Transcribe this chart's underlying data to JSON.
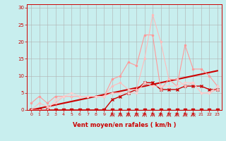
{
  "bg_color": "#c8eeee",
  "grid_color": "#b0b0b0",
  "xlabel": "Vent moyen/en rafales ( km/h )",
  "xlabel_color": "#cc0000",
  "tick_color": "#cc0000",
  "xlim": [
    -0.5,
    23.5
  ],
  "ylim": [
    0,
    31
  ],
  "yticks": [
    0,
    5,
    10,
    15,
    20,
    25,
    30
  ],
  "xticks": [
    0,
    1,
    2,
    3,
    4,
    5,
    6,
    7,
    8,
    9,
    10,
    11,
    12,
    13,
    14,
    15,
    16,
    17,
    18,
    19,
    20,
    21,
    22,
    23
  ],
  "series": [
    {
      "x": [
        0,
        1,
        2,
        3,
        4,
        5,
        6,
        7,
        8,
        9,
        10,
        11,
        12,
        13,
        14,
        15,
        16,
        17,
        18,
        19,
        20,
        21,
        22,
        23
      ],
      "y": [
        0,
        0,
        0,
        0,
        0,
        0,
        0,
        0,
        0,
        0,
        0,
        0,
        0,
        0,
        0,
        0,
        0,
        0,
        0,
        0,
        0,
        0,
        0,
        0
      ],
      "color": "#cc0000",
      "lw": 1.0,
      "marker": "s",
      "ms": 2.5,
      "alpha": 1.0,
      "linestyle": "-"
    },
    {
      "x": [
        0,
        1,
        2,
        3,
        4,
        5,
        6,
        7,
        8,
        9,
        10,
        11,
        12,
        13,
        14,
        15,
        16,
        17,
        18,
        19,
        20,
        21,
        22,
        23
      ],
      "y": [
        0,
        0.5,
        1.0,
        1.5,
        2.0,
        2.5,
        3.0,
        3.5,
        4.0,
        4.5,
        5.0,
        5.5,
        6.0,
        6.5,
        7.0,
        7.5,
        8.0,
        8.5,
        9.0,
        9.5,
        10.0,
        10.5,
        11.0,
        11.5
      ],
      "color": "#cc0000",
      "lw": 1.5,
      "marker": null,
      "ms": 0,
      "alpha": 1.0,
      "linestyle": "-"
    },
    {
      "x": [
        0,
        1,
        2,
        3,
        4,
        5,
        6,
        7,
        8,
        9,
        10,
        11,
        12,
        13,
        14,
        15,
        16,
        17,
        18,
        19,
        20,
        21,
        22,
        23
      ],
      "y": [
        0,
        0,
        0,
        0,
        0,
        0,
        0,
        0,
        0,
        0,
        3,
        4,
        5,
        6,
        8,
        8,
        6,
        6,
        6,
        7,
        7,
        7,
        6,
        6
      ],
      "color": "#cc0000",
      "lw": 1.0,
      "marker": "x",
      "ms": 3,
      "alpha": 1.0,
      "linestyle": "-"
    },
    {
      "x": [
        0,
        1,
        2,
        3,
        4,
        5,
        6,
        7,
        8,
        9,
        10,
        11,
        12,
        13,
        14,
        15,
        16,
        17,
        18,
        19,
        20,
        21,
        22,
        23
      ],
      "y": [
        2,
        4,
        2,
        4,
        4,
        4,
        4,
        4,
        4,
        4,
        9,
        10,
        14,
        13,
        22,
        22,
        6,
        9,
        7,
        19,
        12,
        12,
        10,
        7
      ],
      "color": "#ff9999",
      "lw": 0.8,
      "marker": "o",
      "ms": 1.5,
      "alpha": 1.0,
      "linestyle": "-"
    },
    {
      "x": [
        0,
        1,
        2,
        3,
        4,
        5,
        6,
        7,
        8,
        9,
        10,
        11,
        12,
        13,
        14,
        15,
        16,
        17,
        18,
        19,
        20,
        21,
        22,
        23
      ],
      "y": [
        0,
        2,
        1,
        2,
        4,
        4,
        4,
        4,
        4,
        4,
        7,
        8,
        6,
        6,
        15,
        28,
        20,
        9,
        9,
        7,
        8,
        5,
        5,
        6
      ],
      "color": "#ffbbbb",
      "lw": 0.8,
      "marker": "o",
      "ms": 1.5,
      "alpha": 1.0,
      "linestyle": "-"
    },
    {
      "x": [
        0,
        1,
        2,
        3,
        4,
        5,
        6,
        7,
        8,
        9,
        10,
        11,
        12,
        13,
        14,
        15,
        16,
        17,
        18,
        19,
        20,
        21,
        22,
        23
      ],
      "y": [
        0,
        0,
        0,
        3,
        4,
        5,
        4,
        4,
        4,
        4,
        5,
        5,
        5,
        5,
        8,
        7,
        7,
        7,
        7,
        8,
        8,
        5,
        5,
        7
      ],
      "color": "#ffcccc",
      "lw": 0.8,
      "marker": "o",
      "ms": 1.5,
      "alpha": 1.0,
      "linestyle": "-"
    }
  ],
  "arrows": {
    "x": [
      10,
      11,
      12,
      13,
      14,
      15,
      16,
      17,
      18,
      19,
      20
    ],
    "color": "#cc0000"
  }
}
